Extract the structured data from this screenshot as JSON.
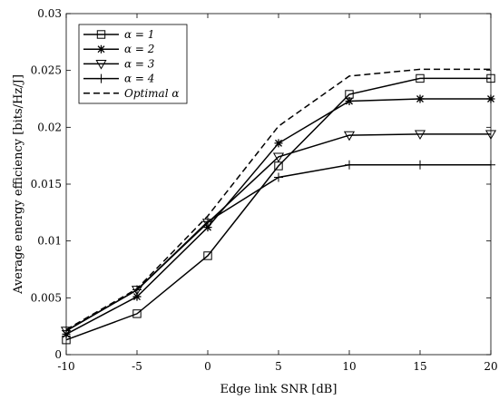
{
  "chart_data": {
    "type": "line",
    "title": "",
    "xlabel": "Edge link SNR [dB]",
    "ylabel": "Average energy efficiency [bits/Hz/J]",
    "xlim": [
      -10,
      20
    ],
    "ylim": [
      0,
      0.03
    ],
    "x": [
      -10,
      -5,
      0,
      5,
      10,
      15,
      20
    ],
    "x_ticks": [
      -10,
      -5,
      0,
      5,
      10,
      15,
      20
    ],
    "x_tick_labels": [
      "-10",
      "-5",
      "0",
      "5",
      "10",
      "15",
      "20"
    ],
    "y_ticks": [
      0,
      0.005,
      0.01,
      0.015,
      0.02,
      0.025,
      0.03
    ],
    "y_tick_labels": [
      "0",
      "0.005",
      "0.01",
      "0.015",
      "0.02",
      "0.025",
      "0.03"
    ],
    "grid": false,
    "legend_position": "top-left",
    "series": [
      {
        "name": "α = 1",
        "marker": "square",
        "dash": "solid",
        "color": "#000000",
        "values": [
          0.0013,
          0.0036,
          0.0087,
          0.0166,
          0.0229,
          0.0243,
          0.0243
        ]
      },
      {
        "name": "α = 2",
        "marker": "asterisk",
        "dash": "solid",
        "color": "#000000",
        "values": [
          0.0018,
          0.0051,
          0.0112,
          0.0186,
          0.0223,
          0.0225,
          0.0225
        ]
      },
      {
        "name": "α = 3",
        "marker": "triangle-down",
        "dash": "solid",
        "color": "#000000",
        "values": [
          0.0021,
          0.0057,
          0.0116,
          0.0174,
          0.0193,
          0.0194,
          0.0194
        ]
      },
      {
        "name": "α = 4",
        "marker": "plus",
        "dash": "solid",
        "color": "#000000",
        "values": [
          0.0021,
          0.0057,
          0.0117,
          0.0156,
          0.0167,
          0.0167,
          0.0167
        ]
      },
      {
        "name": "Optimal α",
        "marker": "none",
        "dash": "dashed",
        "color": "#000000",
        "values": [
          0.0022,
          0.0058,
          0.0122,
          0.0201,
          0.0245,
          0.0251,
          0.0251
        ]
      }
    ]
  }
}
